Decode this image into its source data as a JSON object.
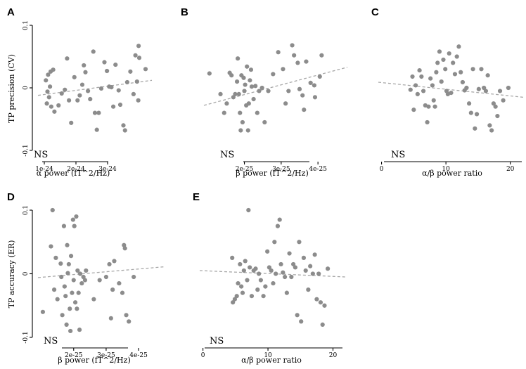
{
  "figure_colors": {
    "point": "#8c8c8c",
    "trend": "#a8a8a8",
    "axis": "#000000"
  },
  "chart_data": [
    {
      "panel": "A",
      "type": "scatter",
      "xlabel": "α power (fT^2/Hz)",
      "ylabel": "TP precision (CV)",
      "xlim": [
        8e-25,
        4.4e-24
      ],
      "ylim": [
        -0.1,
        0.1
      ],
      "xticks": [
        1e-24,
        2e-24,
        3e-24
      ],
      "xtick_labels": [
        "1e-24",
        "2e-24",
        "3e-24"
      ],
      "yticks": [
        -0.1,
        0,
        0.1
      ],
      "ytick_labels": [
        "-0.1",
        "0",
        "0.1"
      ],
      "annotation": "NS",
      "trend": [
        [
          8e-25,
          -0.012
        ],
        [
          4.4e-24,
          0.012
        ]
      ],
      "points": [
        [
          1.05e-24,
          0.012
        ],
        [
          1.12e-24,
          0.021
        ],
        [
          1.2e-24,
          0.026
        ],
        [
          1.28e-24,
          0.029
        ],
        [
          1.18e-24,
          0.002
        ],
        [
          1.1e-24,
          -0.006
        ],
        [
          1.15e-24,
          -0.015
        ],
        [
          1.08e-24,
          -0.025
        ],
        [
          1.22e-24,
          -0.03
        ],
        [
          1.32e-24,
          -0.038
        ],
        [
          1.45e-24,
          -0.028
        ],
        [
          1.55e-24,
          -0.009
        ],
        [
          1.65e-24,
          -0.003
        ],
        [
          1.72e-24,
          0.047
        ],
        [
          1.78e-24,
          -0.02
        ],
        [
          1.85e-24,
          -0.056
        ],
        [
          1.95e-24,
          0.017
        ],
        [
          2.05e-24,
          -0.02
        ],
        [
          2.12e-24,
          -0.012
        ],
        [
          2.2e-24,
          0.005
        ],
        [
          2.25e-24,
          0.036
        ],
        [
          2.3e-24,
          0.025
        ],
        [
          2.38e-24,
          -0.005
        ],
        [
          2.45e-24,
          -0.018
        ],
        [
          2.55e-24,
          0.058
        ],
        [
          2.6e-24,
          -0.04
        ],
        [
          2.66e-24,
          -0.067
        ],
        [
          2.72e-24,
          -0.04
        ],
        [
          2.8e-24,
          -0.001
        ],
        [
          2.9e-24,
          0.041
        ],
        [
          2.98e-24,
          0.027
        ],
        [
          3.05e-24,
          0.002
        ],
        [
          3.12e-24,
          0.001
        ],
        [
          3.18e-24,
          -0.03
        ],
        [
          3.25e-24,
          0.037
        ],
        [
          3.35e-24,
          -0.004
        ],
        [
          3.4e-24,
          -0.027
        ],
        [
          3.5e-24,
          -0.06
        ],
        [
          3.55e-24,
          -0.068
        ],
        [
          3.62e-24,
          0.009
        ],
        [
          3.72e-24,
          0.026
        ],
        [
          3.82e-24,
          -0.01
        ],
        [
          3.88e-24,
          0.052
        ],
        [
          3.93e-24,
          0.01
        ],
        [
          3.97e-24,
          -0.02
        ],
        [
          4e-24,
          0.048
        ],
        [
          3.98e-24,
          0.067
        ],
        [
          4.2e-24,
          0.03
        ]
      ]
    },
    {
      "panel": "B",
      "type": "scatter",
      "xlabel": "β power (fT^2/Hz)",
      "ylabel": "",
      "xlim": [
        9e-26,
        4.8e-25
      ],
      "ylim": [
        -0.1,
        0.1
      ],
      "xticks": [
        2e-25,
        3e-25,
        4e-25
      ],
      "xtick_labels": [
        "2e-25",
        "3e-25",
        "4e-25"
      ],
      "annotation": "NS",
      "trend": [
        [
          9e-26,
          -0.028
        ],
        [
          4.8e-25,
          0.033
        ]
      ],
      "points": [
        [
          1.05e-25,
          0.023
        ],
        [
          1.35e-25,
          -0.01
        ],
        [
          1.45e-25,
          -0.04
        ],
        [
          1.52e-25,
          -0.025
        ],
        [
          1.6e-25,
          0.024
        ],
        [
          1.65e-25,
          0.02
        ],
        [
          1.7e-25,
          -0.015
        ],
        [
          1.75e-25,
          -0.01
        ],
        [
          1.8e-25,
          0.01
        ],
        [
          1.82e-25,
          0.047
        ],
        [
          1.85e-25,
          -0.01
        ],
        [
          1.88e-25,
          -0.04
        ],
        [
          1.9e-25,
          -0.068
        ],
        [
          1.92e-25,
          0.02
        ],
        [
          1.95e-25,
          -0.055
        ],
        [
          1.98e-25,
          0.016
        ],
        [
          2e-25,
          -0.005
        ],
        [
          2.02e-25,
          0.005
        ],
        [
          2.05e-25,
          -0.028
        ],
        [
          2.07e-25,
          0.034
        ],
        [
          2.1e-25,
          -0.068
        ],
        [
          2.12e-25,
          -0.025
        ],
        [
          2.15e-25,
          0.012
        ],
        [
          2.18e-25,
          0.029
        ],
        [
          2.2e-25,
          0.002
        ],
        [
          2.25e-25,
          -0.018
        ],
        [
          2.3e-25,
          0.003
        ],
        [
          2.35e-25,
          -0.04
        ],
        [
          2.4e-25,
          -0.005
        ],
        [
          2.48e-25,
          0.0
        ],
        [
          2.55e-25,
          -0.055
        ],
        [
          2.65e-25,
          -0.005
        ],
        [
          2.78e-25,
          0.022
        ],
        [
          2.92e-25,
          0.057
        ],
        [
          3.05e-25,
          0.03
        ],
        [
          3.12e-25,
          -0.025
        ],
        [
          3.2e-25,
          -0.005
        ],
        [
          3.3e-25,
          0.068
        ],
        [
          3.35e-25,
          0.052
        ],
        [
          3.45e-25,
          0.04
        ],
        [
          3.5e-25,
          -0.002
        ],
        [
          3.58e-25,
          -0.012
        ],
        [
          3.62e-25,
          -0.035
        ],
        [
          3.68e-25,
          0.042
        ],
        [
          3.8e-25,
          0.008
        ],
        [
          3.9e-25,
          0.004
        ],
        [
          3.92e-25,
          -0.015
        ],
        [
          4.1e-25,
          0.052
        ],
        [
          4.05e-25,
          0.018
        ]
      ]
    },
    {
      "panel": "C",
      "type": "scatter",
      "xlabel": "α/β power ratio",
      "ylabel": "",
      "xlim": [
        -0.5,
        22
      ],
      "ylim": [
        -0.1,
        0.1
      ],
      "xticks": [
        0,
        10,
        20
      ],
      "xtick_labels": [
        "0",
        "10",
        "20"
      ],
      "annotation": "NS",
      "trend": [
        [
          -0.5,
          0.009
        ],
        [
          22,
          -0.015
        ]
      ],
      "points": [
        [
          4.5,
          -0.003
        ],
        [
          4.8,
          0.018
        ],
        [
          5.0,
          -0.035
        ],
        [
          5.3,
          0.004
        ],
        [
          5.6,
          -0.01
        ],
        [
          5.9,
          0.028
        ],
        [
          6.2,
          0.018
        ],
        [
          6.5,
          -0.005
        ],
        [
          6.8,
          -0.028
        ],
        [
          7.1,
          -0.055
        ],
        [
          7.3,
          -0.03
        ],
        [
          7.6,
          0.015
        ],
        [
          7.9,
          0.004
        ],
        [
          8.1,
          -0.02
        ],
        [
          8.3,
          -0.03
        ],
        [
          8.5,
          0.025
        ],
        [
          8.7,
          0.04
        ],
        [
          9.0,
          0.058
        ],
        [
          9.3,
          0.01
        ],
        [
          9.6,
          0.045
        ],
        [
          9.9,
          0.03
        ],
        [
          10.1,
          -0.005
        ],
        [
          10.3,
          -0.01
        ],
        [
          10.5,
          0.055
        ],
        [
          10.8,
          -0.008
        ],
        [
          11.1,
          0.04
        ],
        [
          11.4,
          0.022
        ],
        [
          11.7,
          0.05
        ],
        [
          12.0,
          0.066
        ],
        [
          12.3,
          0.025
        ],
        [
          12.6,
          0.009
        ],
        [
          12.9,
          -0.004
        ],
        [
          13.2,
          0.0
        ],
        [
          13.6,
          -0.025
        ],
        [
          13.9,
          -0.04
        ],
        [
          14.2,
          0.03
        ],
        [
          14.5,
          -0.065
        ],
        [
          14.8,
          -0.042
        ],
        [
          15.1,
          -0.002
        ],
        [
          15.5,
          0.03
        ],
        [
          15.9,
          0.0
        ],
        [
          16.2,
          -0.005
        ],
        [
          16.5,
          0.02
        ],
        [
          16.8,
          -0.06
        ],
        [
          17.1,
          -0.068
        ],
        [
          17.4,
          -0.025
        ],
        [
          17.7,
          -0.03
        ],
        [
          18.0,
          -0.045
        ],
        [
          18.4,
          -0.005
        ],
        [
          18.9,
          -0.02
        ],
        [
          19.7,
          0.0
        ]
      ]
    },
    {
      "panel": "D",
      "type": "scatter",
      "xlabel": "β power (fT^2/Hz)",
      "ylabel": "TP accuracy (ER)",
      "xlim": [
        9e-26,
        4.8e-25
      ],
      "ylim": [
        -0.1,
        0.1
      ],
      "xticks": [
        2e-25,
        3e-25,
        4e-25
      ],
      "xtick_labels": [
        "2e-25",
        "3e-25",
        "4e-25"
      ],
      "yticks": [
        -0.1,
        0,
        0.1
      ],
      "ytick_labels": [
        "-0.1",
        "0",
        "0.1"
      ],
      "annotation": "NS",
      "trend": [
        [
          9e-26,
          -0.006
        ],
        [
          4.8e-25,
          0.011
        ]
      ],
      "points": [
        [
          1.05e-25,
          -0.06
        ],
        [
          1.3e-25,
          0.043
        ],
        [
          1.35e-25,
          0.1
        ],
        [
          1.4e-25,
          -0.025
        ],
        [
          1.45e-25,
          0.025
        ],
        [
          1.5e-25,
          -0.04
        ],
        [
          1.6e-25,
          0.016
        ],
        [
          1.62e-25,
          -0.005
        ],
        [
          1.65e-25,
          -0.065
        ],
        [
          1.7e-25,
          0.075
        ],
        [
          1.72e-25,
          -0.02
        ],
        [
          1.75e-25,
          -0.035
        ],
        [
          1.78e-25,
          -0.08
        ],
        [
          1.8e-25,
          0.045
        ],
        [
          1.82e-25,
          0.001
        ],
        [
          1.85e-25,
          0.015
        ],
        [
          1.88e-25,
          -0.055
        ],
        [
          1.9e-25,
          -0.09
        ],
        [
          1.92e-25,
          0.028
        ],
        [
          1.95e-25,
          -0.03
        ],
        [
          1.98e-25,
          0.085
        ],
        [
          2e-25,
          -0.01
        ],
        [
          2.02e-25,
          0.075
        ],
        [
          2.05e-25,
          -0.045
        ],
        [
          2.08e-25,
          0.09
        ],
        [
          2.1e-25,
          -0.055
        ],
        [
          2.12e-25,
          0.005
        ],
        [
          2.15e-25,
          -0.03
        ],
        [
          2.18e-25,
          -0.088
        ],
        [
          2.2e-25,
          0.0
        ],
        [
          2.25e-25,
          -0.015
        ],
        [
          2.3e-25,
          -0.005
        ],
        [
          2.35e-25,
          -0.01
        ],
        [
          2.38e-25,
          0.005
        ],
        [
          2.62e-25,
          -0.04
        ],
        [
          2.8e-25,
          -0.01
        ],
        [
          3e-25,
          -0.005
        ],
        [
          3.1e-25,
          0.015
        ],
        [
          3.15e-25,
          -0.07
        ],
        [
          3.2e-25,
          -0.025
        ],
        [
          3.25e-25,
          0.02
        ],
        [
          3.4e-25,
          -0.015
        ],
        [
          3.5e-25,
          -0.03
        ],
        [
          3.55e-25,
          0.045
        ],
        [
          3.58e-25,
          0.04
        ],
        [
          3.62e-25,
          -0.065
        ],
        [
          3.7e-25,
          -0.075
        ],
        [
          3.85e-25,
          -0.005
        ]
      ]
    },
    {
      "panel": "E",
      "type": "scatter",
      "xlabel": "α/β power ratio",
      "ylabel": "",
      "xlim": [
        -0.5,
        22
      ],
      "ylim": [
        -0.1,
        0.1
      ],
      "xticks": [
        0,
        10,
        20
      ],
      "xtick_labels": [
        "0",
        "10",
        "20"
      ],
      "annotation": "NS",
      "trend": [
        [
          -0.5,
          0.005
        ],
        [
          22,
          -0.005
        ]
      ],
      "points": [
        [
          4.5,
          0.025
        ],
        [
          4.6,
          -0.045
        ],
        [
          4.9,
          -0.04
        ],
        [
          5.2,
          -0.035
        ],
        [
          5.4,
          -0.015
        ],
        [
          5.7,
          0.015
        ],
        [
          5.9,
          -0.02
        ],
        [
          6.1,
          -0.03
        ],
        [
          6.3,
          0.005
        ],
        [
          6.5,
          0.02
        ],
        [
          6.8,
          -0.01
        ],
        [
          7.0,
          0.1
        ],
        [
          7.2,
          0.01
        ],
        [
          7.5,
          -0.035
        ],
        [
          7.8,
          0.005
        ],
        [
          8.1,
          0.008
        ],
        [
          8.4,
          -0.025
        ],
        [
          8.6,
          0.0
        ],
        [
          8.9,
          -0.01
        ],
        [
          9.3,
          -0.035
        ],
        [
          9.6,
          -0.02
        ],
        [
          9.9,
          0.035
        ],
        [
          10.2,
          0.01
        ],
        [
          10.5,
          0.005
        ],
        [
          10.8,
          -0.015
        ],
        [
          11.0,
          0.05
        ],
        [
          11.2,
          0.0
        ],
        [
          11.5,
          0.075
        ],
        [
          11.8,
          0.085
        ],
        [
          12.0,
          0.015
        ],
        [
          12.3,
          0.002
        ],
        [
          12.6,
          -0.005
        ],
        [
          12.9,
          -0.03
        ],
        [
          13.3,
          0.032
        ],
        [
          13.6,
          -0.005
        ],
        [
          13.9,
          0.015
        ],
        [
          14.2,
          0.01
        ],
        [
          14.5,
          -0.065
        ],
        [
          14.8,
          0.05
        ],
        [
          15.1,
          -0.075
        ],
        [
          15.5,
          0.025
        ],
        [
          15.8,
          0.005
        ],
        [
          16.2,
          -0.025
        ],
        [
          16.5,
          0.012
        ],
        [
          16.9,
          0.0
        ],
        [
          17.2,
          0.03
        ],
        [
          17.5,
          -0.04
        ],
        [
          17.8,
          0.0
        ],
        [
          18.1,
          -0.045
        ],
        [
          18.4,
          -0.08
        ],
        [
          18.7,
          -0.05
        ],
        [
          19.2,
          0.008
        ]
      ]
    }
  ]
}
